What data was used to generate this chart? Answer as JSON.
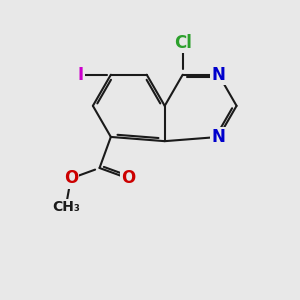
{
  "background_color": "#e8e8e8",
  "bond_color": "#1a1a1a",
  "bond_width": 1.5,
  "atom_colors": {
    "N": "#0000cc",
    "Cl": "#2ca02c",
    "I": "#cc00cc",
    "O": "#cc0000",
    "C": "#1a1a1a"
  },
  "font_size": 12,
  "font_size_small": 10,
  "bl": 1.22
}
